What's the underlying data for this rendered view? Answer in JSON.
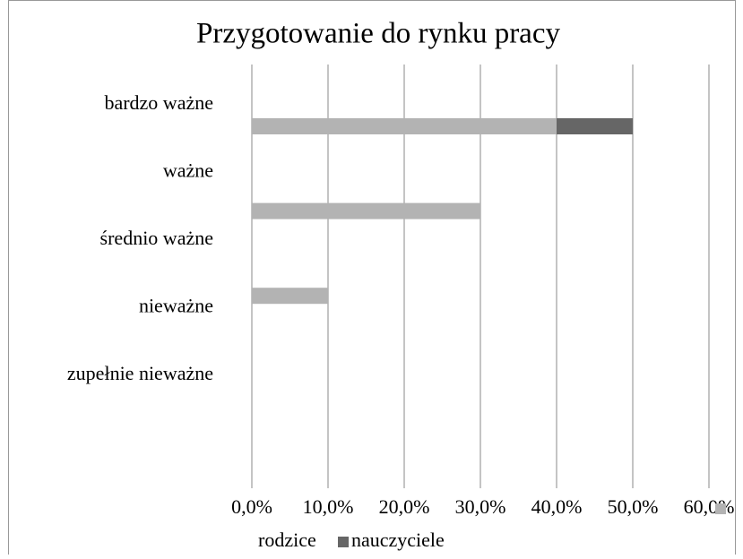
{
  "chart_data": {
    "type": "bar",
    "orientation": "horizontal",
    "stacked": true,
    "title": "Przygotowanie do rynku pracy",
    "categories": [
      "bardzo ważne",
      "ważne",
      "średnio ważne",
      "nieważne",
      "zupełnie nieważne"
    ],
    "series": [
      {
        "name": "rodzice",
        "color": "#b3b3b3",
        "values": [
          40,
          30,
          10,
          0,
          0
        ]
      },
      {
        "name": "nauczyciele",
        "color": "#666666",
        "values": [
          10,
          0,
          0,
          0,
          0
        ]
      }
    ],
    "xlim": [
      0,
      60
    ],
    "xticks": [
      {
        "value": 0,
        "label": "0,0%"
      },
      {
        "value": 10,
        "label": "10,0%"
      },
      {
        "value": 20,
        "label": "20,0%"
      },
      {
        "value": 30,
        "label": "30,0%"
      },
      {
        "value": 40,
        "label": "40,0%"
      },
      {
        "value": 50,
        "label": "50,0%"
      },
      {
        "value": 60,
        "label": "60,0%"
      }
    ],
    "grid": true
  }
}
